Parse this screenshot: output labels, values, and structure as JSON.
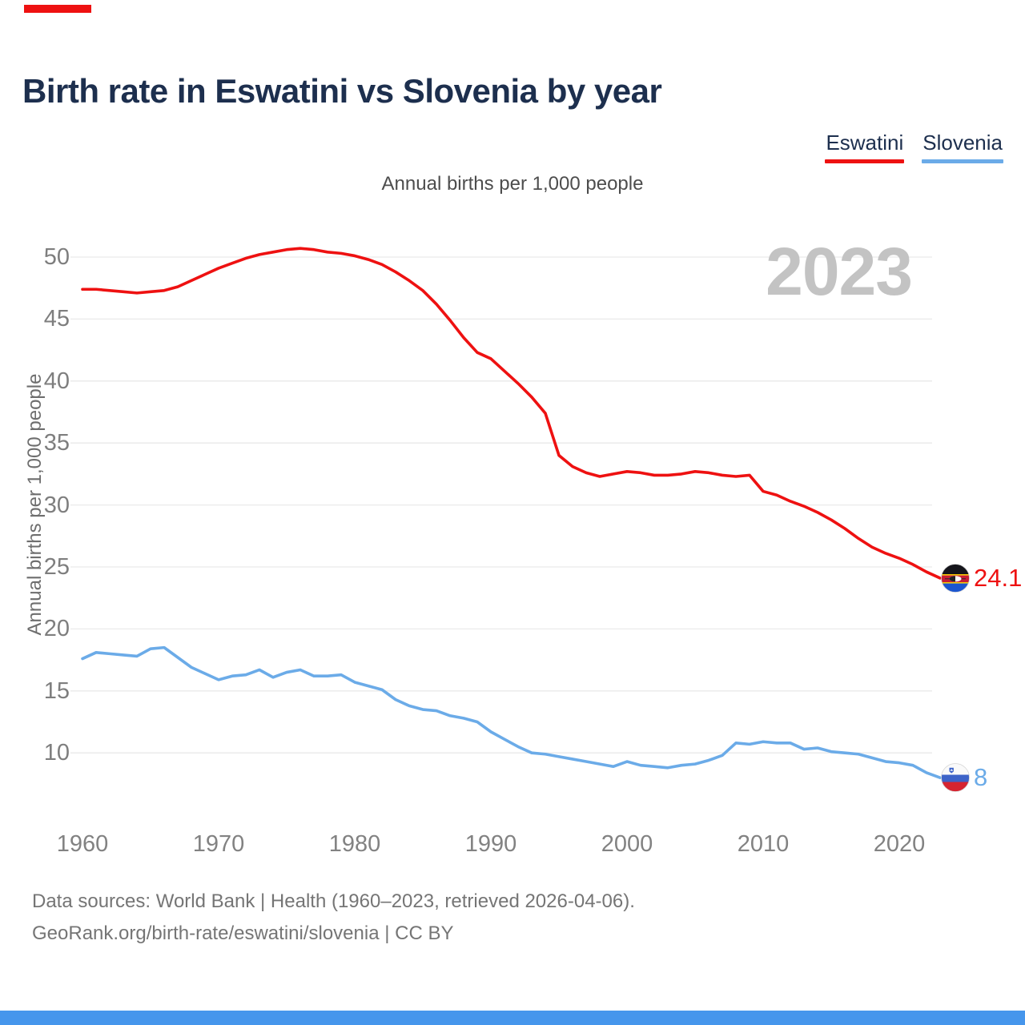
{
  "page": {
    "title": "Birth rate in Eswatini vs Slovenia by year",
    "subtitle": "Annual births per 1,000 people",
    "watermark": "2023",
    "footer_line1": "Data sources: World Bank | Health (1960–2023, retrieved 2026-04-06).",
    "footer_line2": "GeoRank.org/birth-rate/eswatini/slovenia | CC BY"
  },
  "legend": {
    "items": [
      {
        "label": "Eswatini",
        "color": "#ee1111"
      },
      {
        "label": "Slovenia",
        "color": "#6babe8"
      }
    ]
  },
  "branding": {
    "top_bar_color": "#ee1111",
    "bottom_bar_color": "#4696ec"
  },
  "chart_data": {
    "type": "line",
    "title": "Birth rate in Eswatini vs Slovenia by year",
    "subtitle": "Annual births per 1,000 people",
    "ylabel": "Annual births per 1,000 people",
    "xlabel": "",
    "grid": true,
    "legend_position": "top-right",
    "ylim": [
      6.5,
      52.5
    ],
    "xlim": [
      1960,
      2023
    ],
    "yticks": [
      10,
      15,
      20,
      25,
      30,
      35,
      40,
      45,
      50
    ],
    "xticks": [
      1960,
      1970,
      1980,
      1990,
      2000,
      2010,
      2020
    ],
    "x": [
      1960,
      1961,
      1962,
      1963,
      1964,
      1965,
      1966,
      1967,
      1968,
      1969,
      1970,
      1971,
      1972,
      1973,
      1974,
      1975,
      1976,
      1977,
      1978,
      1979,
      1980,
      1981,
      1982,
      1983,
      1984,
      1985,
      1986,
      1987,
      1988,
      1989,
      1990,
      1991,
      1992,
      1993,
      1994,
      1995,
      1996,
      1997,
      1998,
      1999,
      2000,
      2001,
      2002,
      2003,
      2004,
      2005,
      2006,
      2007,
      2008,
      2009,
      2010,
      2011,
      2012,
      2013,
      2014,
      2015,
      2016,
      2017,
      2018,
      2019,
      2020,
      2021,
      2022,
      2023
    ],
    "series": [
      {
        "name": "Eswatini",
        "color": "#ee1111",
        "end_label": "24.1",
        "end_value": 24.1,
        "flag": "eswatini",
        "values": [
          47.4,
          47.4,
          47.3,
          47.2,
          47.1,
          47.2,
          47.3,
          47.6,
          48.1,
          48.6,
          49.1,
          49.5,
          49.9,
          50.2,
          50.4,
          50.6,
          50.7,
          50.6,
          50.4,
          50.3,
          50.1,
          49.8,
          49.4,
          48.8,
          48.1,
          47.3,
          46.2,
          44.9,
          43.5,
          42.3,
          41.8,
          40.8,
          39.8,
          38.7,
          37.4,
          34.0,
          33.1,
          32.6,
          32.3,
          32.5,
          32.7,
          32.6,
          32.4,
          32.4,
          32.5,
          32.7,
          32.6,
          32.4,
          32.3,
          32.4,
          31.1,
          30.8,
          30.3,
          29.9,
          29.4,
          28.8,
          28.1,
          27.3,
          26.6,
          26.1,
          25.7,
          25.2,
          24.6,
          24.1
        ]
      },
      {
        "name": "Slovenia",
        "color": "#6babe8",
        "end_label": "8",
        "end_value": 8.0,
        "flag": "slovenia",
        "values": [
          17.6,
          18.1,
          18.0,
          17.9,
          17.8,
          18.4,
          18.5,
          17.7,
          16.9,
          16.4,
          15.9,
          16.2,
          16.3,
          16.7,
          16.1,
          16.5,
          16.7,
          16.2,
          16.2,
          16.3,
          15.7,
          15.4,
          15.1,
          14.3,
          13.8,
          13.5,
          13.4,
          13.0,
          12.8,
          12.5,
          11.7,
          11.1,
          10.5,
          10.0,
          9.9,
          9.7,
          9.5,
          9.3,
          9.1,
          8.9,
          9.3,
          9.0,
          8.9,
          8.8,
          9.0,
          9.1,
          9.4,
          9.8,
          10.8,
          10.7,
          10.9,
          10.8,
          10.8,
          10.3,
          10.4,
          10.1,
          10.0,
          9.9,
          9.6,
          9.3,
          9.2,
          9.0,
          8.4,
          8.0
        ]
      }
    ]
  }
}
